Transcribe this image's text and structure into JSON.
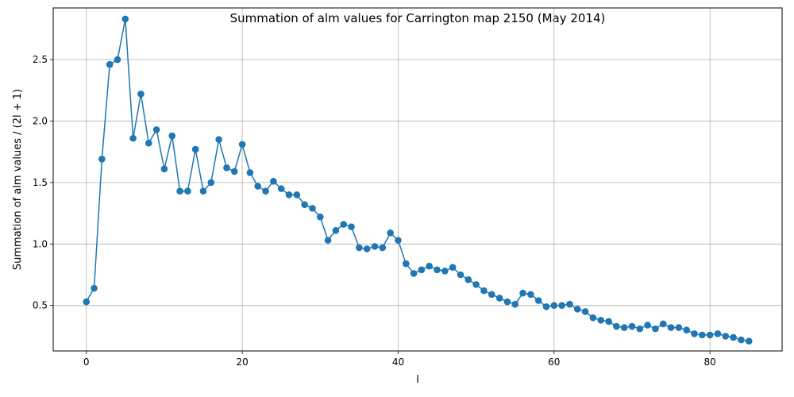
{
  "chart_data": {
    "type": "line",
    "title": "Summation of alm values for Carrington map 2150 (May 2014)",
    "xlabel": "l",
    "ylabel": "Summation of alm values / (2l + 1)",
    "xlim": [
      -4.25,
      89.25
    ],
    "ylim": [
      0.13,
      2.92
    ],
    "xticks": [
      0,
      20,
      40,
      60,
      80
    ],
    "yticks": [
      0.5,
      1.0,
      1.5,
      2.0,
      2.5
    ],
    "xtick_labels": [
      "0",
      "20",
      "40",
      "60",
      "80"
    ],
    "ytick_labels": [
      "0.5",
      "1.0",
      "1.5",
      "2.0",
      "2.5"
    ],
    "grid": true,
    "series": [
      {
        "color": "#1f77b4",
        "marker": "circle",
        "x": [
          0,
          1,
          2,
          3,
          4,
          5,
          6,
          7,
          8,
          9,
          10,
          11,
          12,
          13,
          14,
          15,
          16,
          17,
          18,
          19,
          20,
          21,
          22,
          23,
          24,
          25,
          26,
          27,
          28,
          29,
          30,
          31,
          32,
          33,
          34,
          35,
          36,
          37,
          38,
          39,
          40,
          41,
          42,
          43,
          44,
          45,
          46,
          47,
          48,
          49,
          50,
          51,
          52,
          53,
          54,
          55,
          56,
          57,
          58,
          59,
          60,
          61,
          62,
          63,
          64,
          65,
          66,
          67,
          68,
          69,
          70,
          71,
          72,
          73,
          74,
          75,
          76,
          77,
          78,
          79,
          80,
          81,
          82,
          83,
          84,
          85
        ],
        "y": [
          0.53,
          0.64,
          1.69,
          2.46,
          2.5,
          2.83,
          1.86,
          2.22,
          1.82,
          1.93,
          1.61,
          1.88,
          1.43,
          1.43,
          1.77,
          1.43,
          1.5,
          1.85,
          1.62,
          1.59,
          1.81,
          1.58,
          1.47,
          1.43,
          1.51,
          1.45,
          1.4,
          1.4,
          1.32,
          1.29,
          1.22,
          1.03,
          1.11,
          1.16,
          1.14,
          0.97,
          0.96,
          0.98,
          0.97,
          1.09,
          1.03,
          0.84,
          0.76,
          0.79,
          0.82,
          0.79,
          0.78,
          0.81,
          0.75,
          0.71,
          0.67,
          0.62,
          0.59,
          0.56,
          0.53,
          0.51,
          0.6,
          0.59,
          0.54,
          0.49,
          0.5,
          0.5,
          0.51,
          0.47,
          0.45,
          0.4,
          0.38,
          0.37,
          0.33,
          0.32,
          0.33,
          0.31,
          0.34,
          0.31,
          0.35,
          0.32,
          0.32,
          0.3,
          0.27,
          0.26,
          0.26,
          0.27,
          0.25,
          0.24,
          0.22,
          0.21
        ]
      }
    ]
  }
}
